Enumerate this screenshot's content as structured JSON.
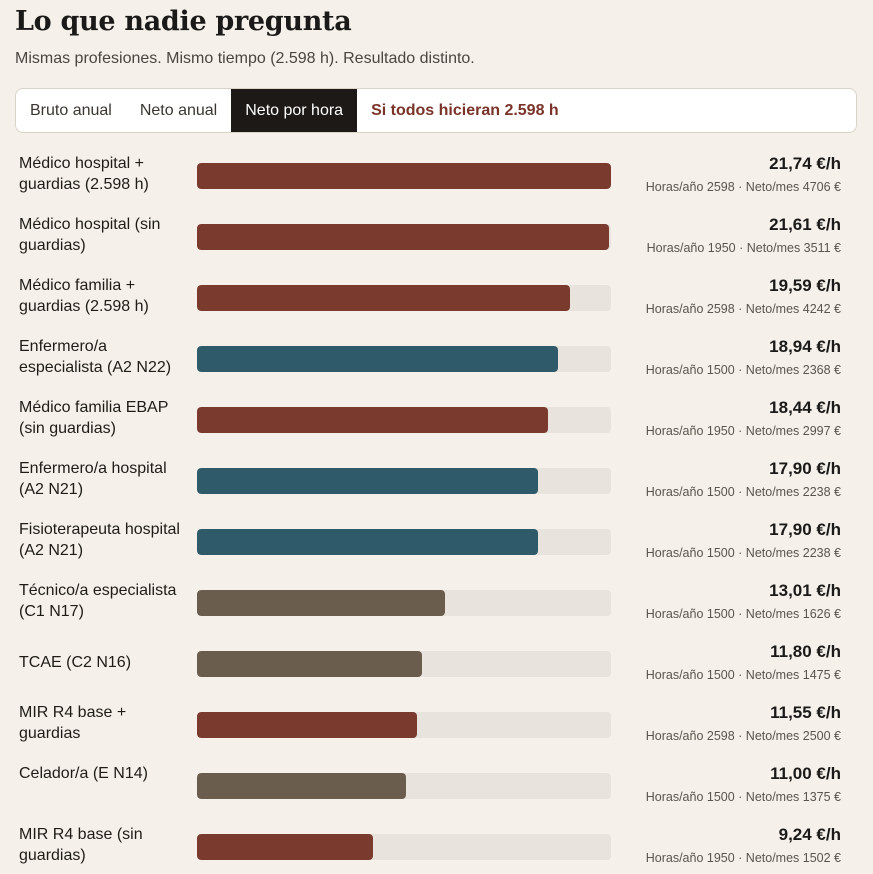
{
  "header": {
    "title": "Lo que nadie pregunta",
    "subtitle": "Mismas profesiones. Mismo tiempo (2.598 h). Resultado distinto."
  },
  "tabs": [
    {
      "label": "Bruto anual",
      "active": false
    },
    {
      "label": "Neto anual",
      "active": false
    },
    {
      "label": "Neto por hora",
      "active": true
    },
    {
      "label": "Si todos hicieran 2.598 h",
      "active": false
    }
  ],
  "colors": {
    "medico": "#7a3a2e",
    "enfermeria": "#2f5a69",
    "tecnico": "#6a5d4e",
    "track": "#e8e3dc"
  },
  "chart_data": {
    "type": "bar",
    "orientation": "horizontal",
    "unit": "€/h",
    "xlim": [
      0,
      21.74
    ],
    "categories": [
      "Médico hospital + guardias (2.598 h)",
      "Médico hospital (sin guardias)",
      "Médico familia + guardias (2.598 h)",
      "Enfermero/a especialista (A2 N22)",
      "Médico familia EBAP (sin guardias)",
      "Enfermero/a hospital (A2 N21)",
      "Fisioterapeuta hospital (A2 N21)",
      "Técnico/a especialista (C1 N17)",
      "TCAE (C2 N16)",
      "MIR R4 base + guardias",
      "Celador/a (E N14)",
      "MIR R4 base (sin guardias)"
    ],
    "values": [
      21.74,
      21.61,
      19.59,
      18.94,
      18.44,
      17.9,
      17.9,
      13.01,
      11.8,
      11.55,
      11.0,
      9.24
    ],
    "value_labels": [
      "21,74 €/h",
      "21,61 €/h",
      "19,59 €/h",
      "18,94 €/h",
      "18,44 €/h",
      "17,90 €/h",
      "17,90 €/h",
      "13,01 €/h",
      "11,80 €/h",
      "11,55 €/h",
      "11,00 €/h",
      "9,24 €/h"
    ],
    "groups": [
      "medico",
      "medico",
      "medico",
      "enfermeria",
      "medico",
      "enfermeria",
      "enfermeria",
      "tecnico",
      "tecnico",
      "medico",
      "tecnico",
      "medico"
    ],
    "meta": [
      "Horas/año 2598 · Neto/mes 4706 €",
      "Horas/año 1950 · Neto/mes 3511 €",
      "Horas/año 2598 · Neto/mes 4242 €",
      "Horas/año 1500 · Neto/mes 2368 €",
      "Horas/año 1950 · Neto/mes 2997 €",
      "Horas/año 1500 · Neto/mes 2238 €",
      "Horas/año 1500 · Neto/mes 2238 €",
      "Horas/año 1500 · Neto/mes 1626 €",
      "Horas/año 1500 · Neto/mes 1475 €",
      "Horas/año 2598 · Neto/mes 2500 €",
      "Horas/año 1500 · Neto/mes 1375 €",
      "Horas/año 1950 · Neto/mes 1502 €"
    ]
  }
}
